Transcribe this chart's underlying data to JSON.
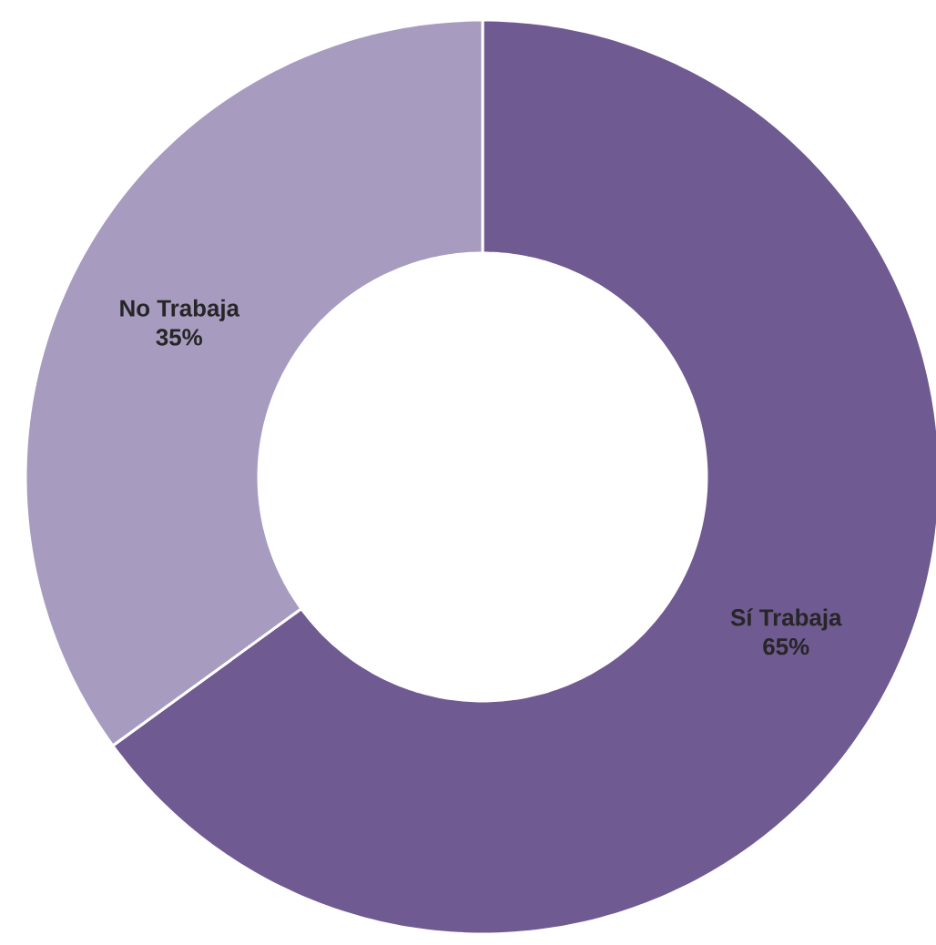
{
  "chart_data": {
    "type": "donut",
    "categories": [
      "Sí Trabaja",
      "No Trabaja"
    ],
    "values": [
      65,
      35
    ],
    "value_labels": [
      "65%",
      "35%"
    ],
    "colors": [
      "#705a92",
      "#a89bc0"
    ]
  }
}
